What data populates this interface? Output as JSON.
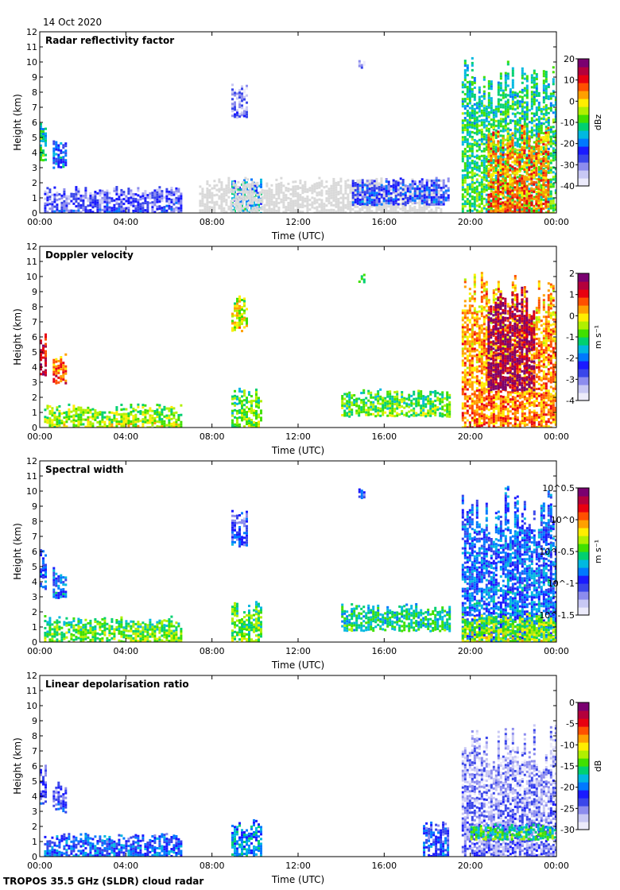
{
  "header": {
    "date": "14 Oct 2020"
  },
  "footer": {
    "source": "TROPOS 35.5 GHz (SLDR) cloud radar"
  },
  "colors": {
    "frame": "#000000",
    "missing": "#d9d9d9",
    "colormap": [
      "#ecebfb",
      "#c8c8f4",
      "#8c8cee",
      "#3a46ea",
      "#1a1aff",
      "#0078ff",
      "#00b8e0",
      "#00d070",
      "#40e000",
      "#b0f000",
      "#ffee00",
      "#ffa000",
      "#ff5000",
      "#e80010",
      "#b4003c",
      "#7a0070"
    ]
  },
  "chart_data": [
    {
      "type": "heatmap",
      "title": "Radar reflectivity factor",
      "xlabel": "Time (UTC)",
      "ylabel": "Height (km)",
      "xticks": [
        "00:00",
        "04:00",
        "08:00",
        "12:00",
        "16:00",
        "20:00",
        "00:00"
      ],
      "xlim_hours": [
        0,
        24
      ],
      "ylim_km": [
        0,
        12
      ],
      "yticks": [
        0,
        1,
        2,
        3,
        4,
        5,
        6,
        7,
        8,
        9,
        10,
        11,
        12
      ],
      "colorbar": {
        "unit": "dBz",
        "min": -40,
        "max": 20,
        "ticks": [
          "20",
          "10",
          "0",
          "-10",
          "-20",
          "-30",
          "-40"
        ]
      },
      "features": [
        {
          "desc": "low clouds",
          "t0": 0.2,
          "t1": 6.6,
          "h0": 0,
          "h1": 1.8,
          "level": 0.18
        },
        {
          "desc": "early cloud",
          "t0": 0,
          "t1": 0.3,
          "h0": 3.5,
          "h1": 6.2,
          "level": 0.45
        },
        {
          "desc": "small cloud",
          "t0": 0.6,
          "t1": 1.2,
          "h0": 3.0,
          "h1": 5.0,
          "level": 0.3
        },
        {
          "desc": "mid-level cloud",
          "t0": 8.9,
          "t1": 9.6,
          "h0": 6.4,
          "h1": 8.8,
          "level": 0.12
        },
        {
          "desc": "low convective",
          "t0": 8.9,
          "t1": 10.3,
          "h0": 0,
          "h1": 2.4,
          "level": 0.35
        },
        {
          "desc": "clutter band",
          "t0": 7.4,
          "t1": 18.6,
          "h0": 0,
          "h1": 2.4,
          "level": -1
        },
        {
          "desc": "boundary layer echo",
          "t0": 14.5,
          "t1": 19.0,
          "h0": 0.6,
          "h1": 2.4,
          "level": 0.22
        },
        {
          "desc": "small high cloud",
          "t0": 14.8,
          "t1": 15.1,
          "h0": 9.6,
          "h1": 10.2,
          "level": 0.1
        },
        {
          "desc": "main cloud system",
          "t0": 19.6,
          "t1": 24,
          "h0": 0,
          "h1": 10.5,
          "level": 0.45
        },
        {
          "desc": "precipitation core",
          "t0": 20.8,
          "t1": 23.6,
          "h0": 0,
          "h1": 6.0,
          "level": 0.72
        }
      ]
    },
    {
      "type": "heatmap",
      "title": "Doppler velocity",
      "xlabel": "Time (UTC)",
      "ylabel": "Height (km)",
      "xticks": [
        "00:00",
        "04:00",
        "08:00",
        "12:00",
        "16:00",
        "20:00",
        "00:00"
      ],
      "xlim_hours": [
        0,
        24
      ],
      "ylim_km": [
        0,
        12
      ],
      "yticks": [
        0,
        1,
        2,
        3,
        4,
        5,
        6,
        7,
        8,
        9,
        10,
        11,
        12
      ],
      "colorbar": {
        "unit": "m s⁻¹",
        "min": -4,
        "max": 2,
        "ticks": [
          "2",
          "1",
          "0",
          "-1",
          "-2",
          "-3",
          "-4"
        ]
      },
      "features": [
        {
          "desc": "low clouds",
          "t0": 0.2,
          "t1": 6.6,
          "h0": 0,
          "h1": 1.6,
          "level": 0.55
        },
        {
          "desc": "early cloud",
          "t0": 0,
          "t1": 0.3,
          "h0": 3.5,
          "h1": 6.5,
          "level": 0.85
        },
        {
          "desc": "small cloud",
          "t0": 0.6,
          "t1": 1.2,
          "h0": 3.0,
          "h1": 5.0,
          "level": 0.75
        },
        {
          "desc": "mid-level cloud",
          "t0": 8.9,
          "t1": 9.6,
          "h0": 6.4,
          "h1": 8.8,
          "level": 0.6
        },
        {
          "desc": "low convective",
          "t0": 8.9,
          "t1": 10.3,
          "h0": 0,
          "h1": 2.8,
          "level": 0.5
        },
        {
          "desc": "boundary layer echo",
          "t0": 14.0,
          "t1": 19.0,
          "h0": 0.8,
          "h1": 2.6,
          "level": 0.5
        },
        {
          "desc": "small high cloud",
          "t0": 14.8,
          "t1": 15.1,
          "h0": 9.6,
          "h1": 10.2,
          "level": 0.55
        },
        {
          "desc": "main cloud system",
          "t0": 19.6,
          "t1": 24,
          "h0": 0,
          "h1": 10.5,
          "level": 0.7
        },
        {
          "desc": "falling precipitation",
          "t0": 20.8,
          "t1": 23.0,
          "h0": 2.5,
          "h1": 9.5,
          "level": 0.92
        }
      ]
    },
    {
      "type": "heatmap",
      "title": "Spectral width",
      "xlabel": "Time (UTC)",
      "ylabel": "Height (km)",
      "xticks": [
        "00:00",
        "04:00",
        "08:00",
        "12:00",
        "16:00",
        "20:00",
        "00:00"
      ],
      "xlim_hours": [
        0,
        24
      ],
      "ylim_km": [
        0,
        12
      ],
      "yticks": [
        0,
        1,
        2,
        3,
        4,
        5,
        6,
        7,
        8,
        9,
        10,
        11,
        12
      ],
      "colorbar": {
        "unit": "m s⁻¹",
        "scale": "log10",
        "min": -1.5,
        "max": 0.5,
        "ticks": [
          "10^0.5",
          "10^0",
          "10^-0.5",
          "10^-1",
          "10^-1.5"
        ]
      },
      "features": [
        {
          "desc": "low clouds",
          "t0": 0.2,
          "t1": 6.6,
          "h0": 0,
          "h1": 1.8,
          "level": 0.5
        },
        {
          "desc": "early cloud",
          "t0": 0,
          "t1": 0.3,
          "h0": 3.5,
          "h1": 6.5,
          "level": 0.28
        },
        {
          "desc": "small cloud",
          "t0": 0.6,
          "t1": 1.2,
          "h0": 3.0,
          "h1": 5.0,
          "level": 0.3
        },
        {
          "desc": "mid-level cloud",
          "t0": 8.9,
          "t1": 9.6,
          "h0": 6.4,
          "h1": 8.8,
          "level": 0.22
        },
        {
          "desc": "low convective",
          "t0": 8.9,
          "t1": 10.3,
          "h0": 0,
          "h1": 2.8,
          "level": 0.5
        },
        {
          "desc": "boundary layer echo",
          "t0": 14.0,
          "t1": 19.0,
          "h0": 0.8,
          "h1": 2.6,
          "level": 0.42
        },
        {
          "desc": "small high cloud",
          "t0": 14.8,
          "t1": 15.1,
          "h0": 9.6,
          "h1": 10.2,
          "level": 0.22
        },
        {
          "desc": "main cloud system",
          "t0": 19.6,
          "t1": 24,
          "h0": 0,
          "h1": 10.5,
          "level": 0.3
        },
        {
          "desc": "turbulent low layer",
          "t0": 19.6,
          "t1": 24,
          "h0": 0,
          "h1": 2.0,
          "level": 0.55
        }
      ]
    },
    {
      "type": "heatmap",
      "title": "Linear depolarisation ratio",
      "xlabel": "Time (UTC)",
      "ylabel": "Height (km)",
      "xticks": [
        "00:00",
        "04:00",
        "08:00",
        "12:00",
        "16:00",
        "20:00",
        "00:00"
      ],
      "xlim_hours": [
        0,
        24
      ],
      "ylim_km": [
        0,
        12
      ],
      "yticks": [
        0,
        1,
        2,
        3,
        4,
        5,
        6,
        7,
        8,
        9,
        10,
        11,
        12
      ],
      "colorbar": {
        "unit": "dB",
        "min": -30,
        "max": 0,
        "ticks": [
          "0",
          "-5",
          "-10",
          "-15",
          "-20",
          "-25",
          "-30"
        ]
      },
      "features": [
        {
          "desc": "low clouds",
          "t0": 0.2,
          "t1": 6.6,
          "h0": 0,
          "h1": 1.6,
          "level": 0.28
        },
        {
          "desc": "early cloud",
          "t0": 0,
          "t1": 0.3,
          "h0": 3.5,
          "h1": 6.2,
          "level": 0.2
        },
        {
          "desc": "small cloud",
          "t0": 0.6,
          "t1": 1.2,
          "h0": 3.0,
          "h1": 5.0,
          "level": 0.2
        },
        {
          "desc": "low convective",
          "t0": 8.9,
          "t1": 10.3,
          "h0": 0,
          "h1": 2.5,
          "level": 0.35
        },
        {
          "desc": "boundary layer echo",
          "t0": 17.8,
          "t1": 19.0,
          "h0": 0,
          "h1": 2.5,
          "level": 0.25
        },
        {
          "desc": "main cloud system",
          "t0": 19.6,
          "t1": 24,
          "h0": 0,
          "h1": 8.8,
          "level": 0.12
        },
        {
          "desc": "melting layer",
          "t0": 20.0,
          "t1": 24,
          "h0": 1.2,
          "h1": 2.2,
          "level": 0.45
        }
      ]
    }
  ]
}
